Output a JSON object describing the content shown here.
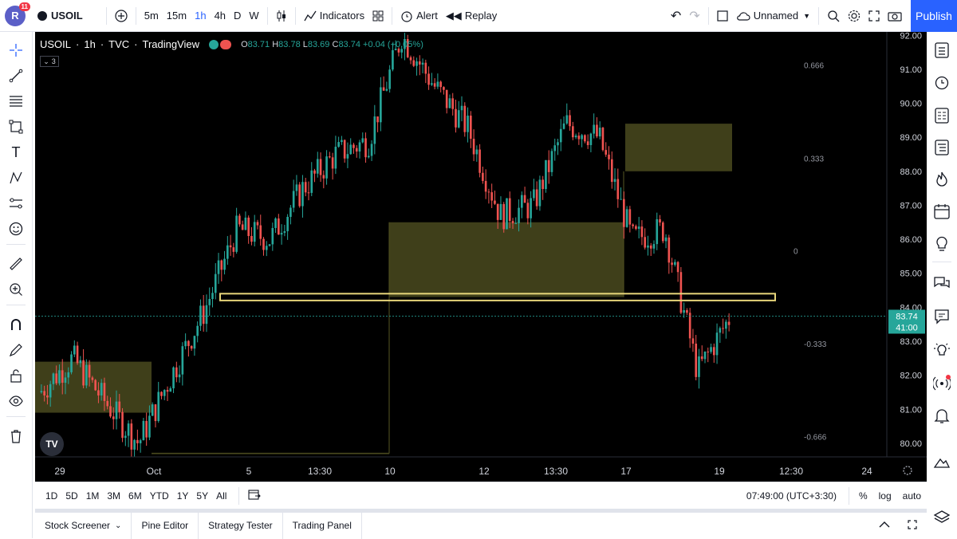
{
  "header": {
    "avatar_letter": "R",
    "notif_count": "11",
    "symbol": "USOIL",
    "timeframes": [
      "5m",
      "15m",
      "1h",
      "4h",
      "D",
      "W"
    ],
    "active_timeframe": "1h",
    "indicators_label": "Indicators",
    "alert_label": "Alert",
    "replay_label": "Replay",
    "layout_name": "Unnamed",
    "publish_label": "Publish"
  },
  "legend": {
    "symbol": "USOIL",
    "interval": "1h",
    "exchange": "TVC",
    "source": "TradingView",
    "o_label": "O",
    "o_value": "83.71",
    "h_label": "H",
    "h_value": "83.78",
    "l_label": "L",
    "l_value": "83.69",
    "c_label": "C",
    "c_value": "83.74",
    "change": "+0.04 (+0.05%)",
    "indicators_count": "3"
  },
  "chart_data": {
    "type": "candlestick",
    "y_ticks": [
      "92.00",
      "91.00",
      "90.00",
      "89.00",
      "88.00",
      "87.00",
      "86.00",
      "85.00",
      "84.00",
      "83.00",
      "82.00",
      "81.00",
      "80.00"
    ],
    "ylim": [
      79.6,
      92.1
    ],
    "x_ticks": [
      "29",
      "Oct",
      "5",
      "13:30",
      "10",
      "12",
      "13:30",
      "17",
      "19",
      "12:30",
      "24"
    ],
    "price_label": "83.74",
    "countdown_label": "41:00",
    "fib_levels": [
      "0.666",
      "0.333",
      "0",
      "-0.333",
      "-0.666"
    ],
    "zone_color": "#4a4a1e",
    "up_color": "#26a69a",
    "down_color": "#ef5350",
    "highlight_color": "#e8d67a",
    "price_line_color": "#26a69a",
    "approx_path": [
      {
        "x": "29",
        "y": 81.5
      },
      {
        "x": "Sep 30",
        "y": 82.5
      },
      {
        "x": "Oct 1",
        "y": 81.2
      },
      {
        "x": "Oct 2",
        "y": 80.0
      },
      {
        "x": "Oct 3",
        "y": 82.0
      },
      {
        "x": "Oct 4",
        "y": 83.9
      },
      {
        "x": "Oct 5",
        "y": 86.3
      },
      {
        "x": "Oct 6",
        "y": 86.0
      },
      {
        "x": "Oct 7",
        "y": 87.5
      },
      {
        "x": "Oct 8",
        "y": 88.5
      },
      {
        "x": "Oct 9",
        "y": 88.9
      },
      {
        "x": "Oct 10",
        "y": 92.0
      },
      {
        "x": "Oct 11",
        "y": 90.5
      },
      {
        "x": "Oct 12",
        "y": 89.3
      },
      {
        "x": "Oct 13",
        "y": 86.7
      },
      {
        "x": "Oct 14",
        "y": 87.0
      },
      {
        "x": "Oct 15",
        "y": 89.4
      },
      {
        "x": "Oct 16",
        "y": 89.0
      },
      {
        "x": "Oct 17",
        "y": 86.0
      },
      {
        "x": "Oct 18",
        "y": 86.3
      },
      {
        "x": "Oct 19",
        "y": 82.1
      },
      {
        "x": "Oct 20",
        "y": 83.74
      }
    ]
  },
  "range_bar": {
    "ranges": [
      "1D",
      "5D",
      "1M",
      "3M",
      "6M",
      "YTD",
      "1Y",
      "5Y",
      "All"
    ],
    "time_label": "07:49:00 (UTC+3:30)",
    "percent": "%",
    "log": "log",
    "auto": "auto"
  },
  "panels": {
    "tabs": [
      "Stock Screener",
      "Pine Editor",
      "Strategy Tester",
      "Trading Panel"
    ]
  }
}
